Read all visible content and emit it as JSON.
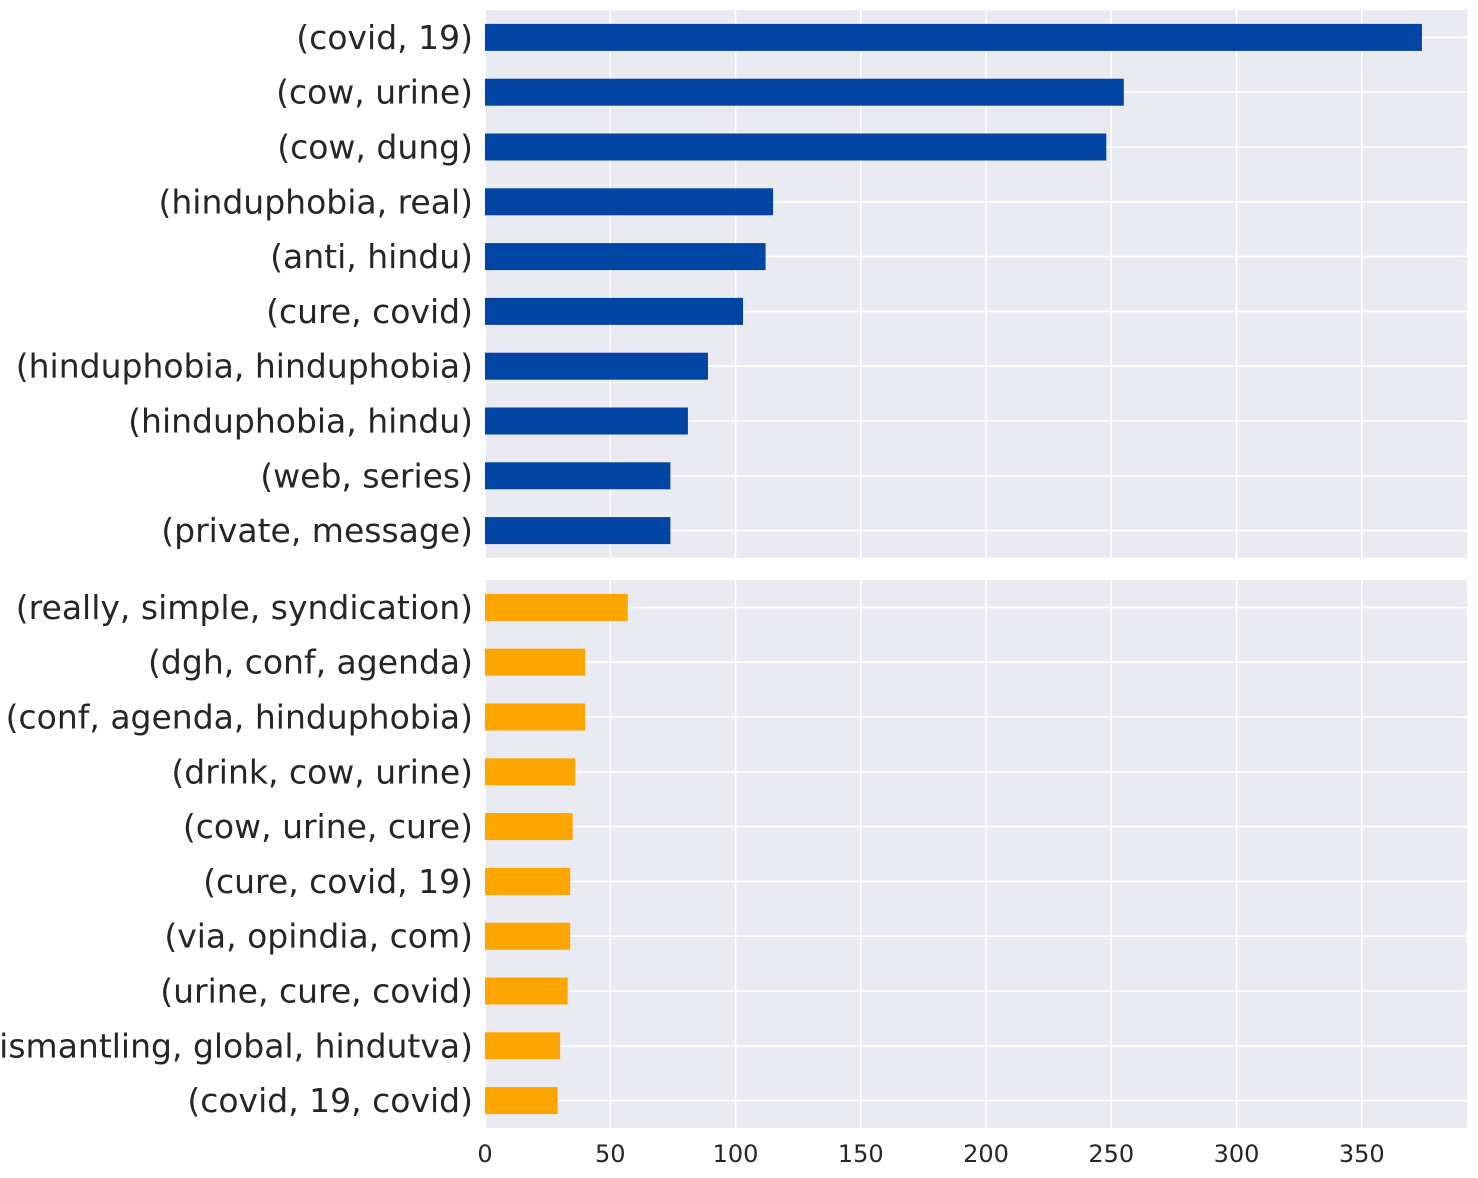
{
  "chart_data": [
    {
      "type": "bar",
      "orientation": "horizontal",
      "categories": [
        "(covid, 19)",
        "(cow, urine)",
        "(cow, dung)",
        "(hinduphobia, real)",
        "(anti, hindu)",
        "(cure, covid)",
        "(hinduphobia, hinduphobia)",
        "(hinduphobia, hindu)",
        "(web, series)",
        "(private, message)"
      ],
      "values": [
        374,
        255,
        248,
        115,
        112,
        103,
        89,
        81,
        74,
        74
      ],
      "color": "#0044a4",
      "xlim": [
        0,
        392
      ],
      "grid": true,
      "show_x_ticks": false
    },
    {
      "type": "bar",
      "orientation": "horizontal",
      "categories": [
        "(really, simple, syndication)",
        "(dgh, conf, agenda)",
        "(conf, agenda, hinduphobia)",
        "(drink, cow, urine)",
        "(cow, urine, cure)",
        "(cure, covid, 19)",
        "(via, opindia, com)",
        "(urine, cure, covid)",
        "(dismantling, global, hindutva)",
        "(covid, 19, covid)"
      ],
      "values": [
        57,
        40,
        40,
        36,
        35,
        34,
        34,
        33,
        30,
        29
      ],
      "color": "#ffa500",
      "xlim": [
        0,
        392
      ],
      "grid": true,
      "x_ticks": [
        0,
        50,
        100,
        150,
        200,
        250,
        300,
        350
      ],
      "show_x_ticks": true
    }
  ]
}
